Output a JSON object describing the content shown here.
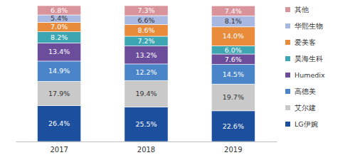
{
  "chart_data": {
    "type": "bar",
    "stacked": true,
    "data_labels": true,
    "tick_labels": "x",
    "legend": "right",
    "categories": [
      "2017",
      "2018",
      "2019"
    ],
    "ylim": [
      0,
      100
    ],
    "series": [
      {
        "name": "LG伊婉",
        "color": "#1c4f9e",
        "values": [
          26.4,
          25.5,
          22.6
        ],
        "value_labels": [
          "26.4%",
          "25.5%",
          "22.6%"
        ]
      },
      {
        "name": "艾尔建",
        "color": "#c9c9c9",
        "values": [
          17.9,
          19.4,
          19.7
        ],
        "value_labels": [
          "17.9%",
          "19.4%",
          "19.7%"
        ]
      },
      {
        "name": "高德美",
        "color": "#4a85c9",
        "values": [
          14.9,
          12.2,
          14.5
        ],
        "value_labels": [
          "14.9%",
          "12.2%",
          "14.5%"
        ]
      },
      {
        "name": "Humedix",
        "color": "#6b4d9c",
        "values": [
          13.4,
          13.2,
          7.6
        ],
        "value_labels": [
          "13.4%",
          "13.2%",
          "7.6%"
        ]
      },
      {
        "name": "昊海生科",
        "color": "#3ea6b3",
        "values": [
          8.2,
          7.2,
          6.0
        ],
        "value_labels": [
          "8.2%",
          "7.2%",
          "6.0%"
        ]
      },
      {
        "name": "爱美客",
        "color": "#e88b3b",
        "values": [
          7.0,
          8.6,
          14.0
        ],
        "value_labels": [
          "7.0%",
          "8.6%",
          "14.0%"
        ]
      },
      {
        "name": "华熙生物",
        "color": "#a8b8e0",
        "values": [
          5.4,
          6.6,
          8.1
        ],
        "value_labels": [
          "5.4%",
          "6.6%",
          "8.1%"
        ]
      },
      {
        "name": "其他",
        "color": "#d9939a",
        "values": [
          6.8,
          7.3,
          7.4
        ],
        "value_labels": [
          "6.8%",
          "7.3%",
          "7.4%"
        ]
      }
    ]
  }
}
